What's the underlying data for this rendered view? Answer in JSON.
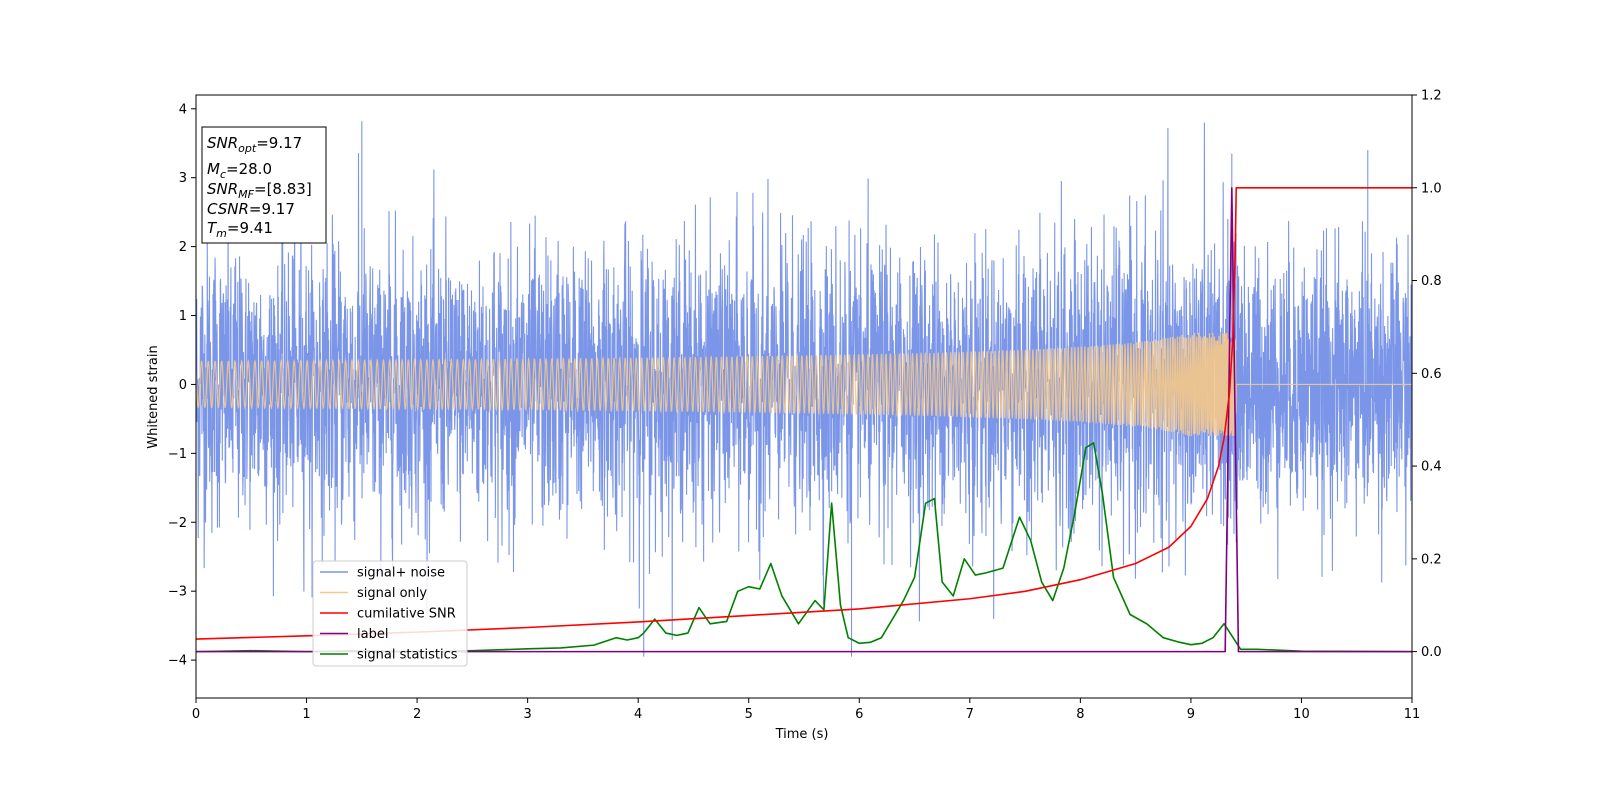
{
  "chart_data": {
    "type": "line",
    "title": "",
    "xlabel": "Time (s)",
    "ylabel": "Whitened strain",
    "xlim": [
      0,
      11
    ],
    "ylim_left": [
      -4.55,
      4.2
    ],
    "ylim_right": [
      -0.1,
      1.2
    ],
    "x_ticks": [
      0,
      1,
      2,
      3,
      4,
      5,
      6,
      7,
      8,
      9,
      10,
      11
    ],
    "y_ticks_left": [
      -4,
      -3,
      -2,
      -1,
      0,
      1,
      2,
      3,
      4
    ],
    "y_ticks_right": [
      0.0,
      0.2,
      0.4,
      0.6,
      0.8,
      1.0,
      1.2
    ],
    "grid": false,
    "legend_position": "lower-left",
    "info_box": {
      "snr_opt": {
        "sym": "SNR",
        "sub": "opt",
        "value": "=9.17"
      },
      "mc": {
        "sym": "M",
        "sub": "c",
        "value": "=28.0"
      },
      "snr_mf": {
        "sym": "SNR",
        "sub": "MF",
        "value": "=[8.83]"
      },
      "csnr": {
        "sym": "CSNR",
        "sub": "",
        "value": "=9.17"
      },
      "tm": {
        "sym": "T",
        "sub": "m",
        "value": "=9.41"
      }
    },
    "series": [
      {
        "name": "signal+ noise",
        "axis": "left",
        "color": "#7b96e8",
        "description_values": "gaussian noise, std ~0.9, range about -3.9 to 3.8, over 0-11 s",
        "notable_peaks": [
          [
            1.5,
            3.82
          ],
          [
            4.05,
            -3.95
          ],
          [
            5.93,
            -3.95
          ],
          [
            10.6,
            3.4
          ],
          [
            9.37,
            3.35
          ]
        ]
      },
      {
        "name": "signal only",
        "axis": "left",
        "color": "#f6c88a",
        "chirp_end": 9.41,
        "amplitude_start": 0.02,
        "amplitude_end": 0.75
      },
      {
        "name": "cumilative SNR",
        "axis": "right",
        "color": "#ff0000",
        "x": [
          0,
          1,
          2,
          3,
          4,
          5,
          6,
          7,
          7.5,
          8,
          8.5,
          8.8,
          9.0,
          9.15,
          9.25,
          9.3,
          9.35,
          9.38,
          9.4,
          9.41,
          11
        ],
        "y": [
          0.027,
          0.034,
          0.042,
          0.052,
          0.064,
          0.078,
          0.092,
          0.114,
          0.13,
          0.155,
          0.19,
          0.225,
          0.27,
          0.33,
          0.4,
          0.46,
          0.56,
          0.68,
          0.85,
          1.0,
          1.0
        ]
      },
      {
        "name": "label",
        "axis": "right",
        "color": "#800080",
        "x": [
          0,
          9.31,
          9.37,
          9.43,
          9.45,
          11
        ],
        "y": [
          0,
          0,
          1.0,
          0,
          0,
          0
        ]
      },
      {
        "name": "signal statistics",
        "axis": "right",
        "color": "#008000",
        "x": [
          0,
          0.5,
          1.0,
          1.5,
          2.0,
          2.5,
          3.0,
          3.3,
          3.6,
          3.8,
          3.9,
          4.0,
          4.05,
          4.15,
          4.25,
          4.35,
          4.45,
          4.55,
          4.65,
          4.8,
          4.9,
          5.0,
          5.1,
          5.2,
          5.3,
          5.45,
          5.6,
          5.68,
          5.75,
          5.83,
          5.9,
          6.0,
          6.1,
          6.2,
          6.4,
          6.5,
          6.6,
          6.68,
          6.75,
          6.85,
          6.95,
          7.05,
          7.15,
          7.3,
          7.45,
          7.55,
          7.65,
          7.75,
          7.85,
          7.95,
          8.05,
          8.12,
          8.2,
          8.3,
          8.45,
          8.6,
          8.75,
          8.9,
          9.0,
          9.1,
          9.2,
          9.3,
          9.45,
          9.6,
          10.0,
          11
        ],
        "y": [
          0.0,
          0.002,
          0.0,
          0.002,
          0.0,
          0.002,
          0.006,
          0.008,
          0.014,
          0.03,
          0.025,
          0.03,
          0.04,
          0.07,
          0.04,
          0.035,
          0.04,
          0.095,
          0.06,
          0.065,
          0.13,
          0.14,
          0.135,
          0.19,
          0.12,
          0.06,
          0.11,
          0.09,
          0.32,
          0.1,
          0.03,
          0.018,
          0.02,
          0.03,
          0.11,
          0.16,
          0.32,
          0.33,
          0.15,
          0.12,
          0.2,
          0.165,
          0.17,
          0.18,
          0.29,
          0.24,
          0.15,
          0.11,
          0.18,
          0.3,
          0.44,
          0.45,
          0.34,
          0.16,
          0.08,
          0.06,
          0.03,
          0.02,
          0.015,
          0.018,
          0.03,
          0.06,
          0.005,
          0.005,
          0.001,
          0.0
        ]
      }
    ]
  }
}
